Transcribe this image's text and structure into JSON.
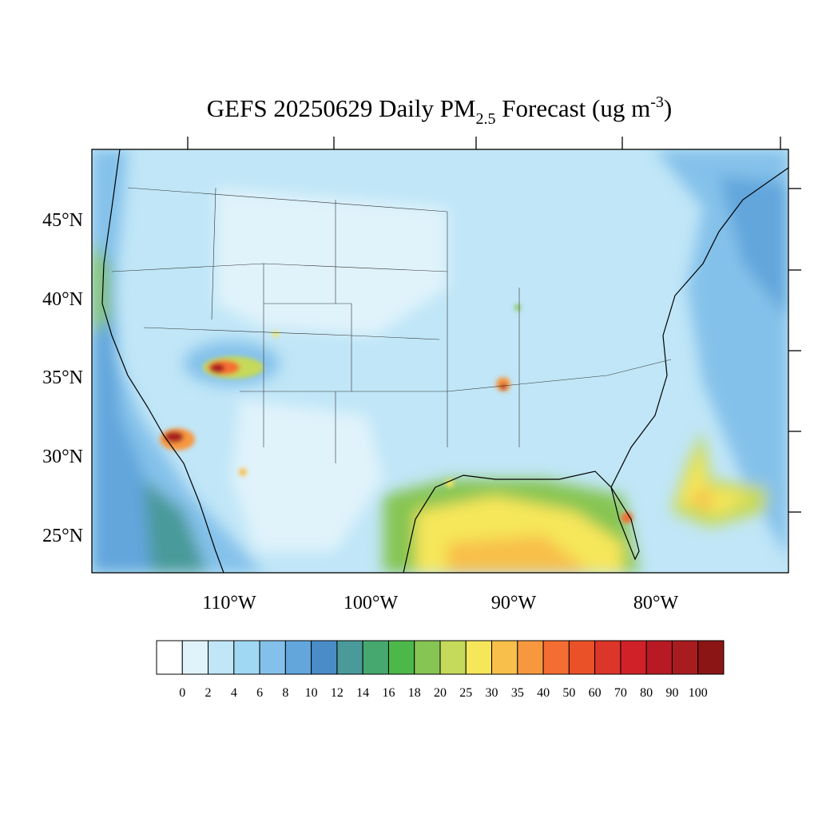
{
  "title": {
    "main": "GEFS 20250629 Daily PM",
    "sub": "2.5",
    "rest": " Forecast (ug m",
    "sup": "-3",
    "close": ")"
  },
  "map": {
    "lat_labels": [
      "45°N",
      "40°N",
      "35°N",
      "30°N",
      "25°N"
    ],
    "lon_labels": [
      "110°W",
      "100°W",
      "90°W",
      "80°W"
    ]
  },
  "colorbar": {
    "levels": [
      0,
      2,
      4,
      6,
      8,
      10,
      12,
      14,
      16,
      18,
      20,
      25,
      30,
      35,
      40,
      50,
      60,
      70,
      80,
      90,
      100
    ],
    "colors": [
      "#ffffff",
      "#e0f3fb",
      "#c0e6f7",
      "#a0d8f4",
      "#84c1ea",
      "#62a6dc",
      "#4a8cc8",
      "#4a9a9a",
      "#46a86f",
      "#4cb84a",
      "#86c553",
      "#c5d95a",
      "#f6e65a",
      "#f8bf4a",
      "#f7983f",
      "#f46d32",
      "#ea5129",
      "#dc3529",
      "#d02128",
      "#b71a24",
      "#a81c20",
      "#8b1515"
    ]
  }
}
